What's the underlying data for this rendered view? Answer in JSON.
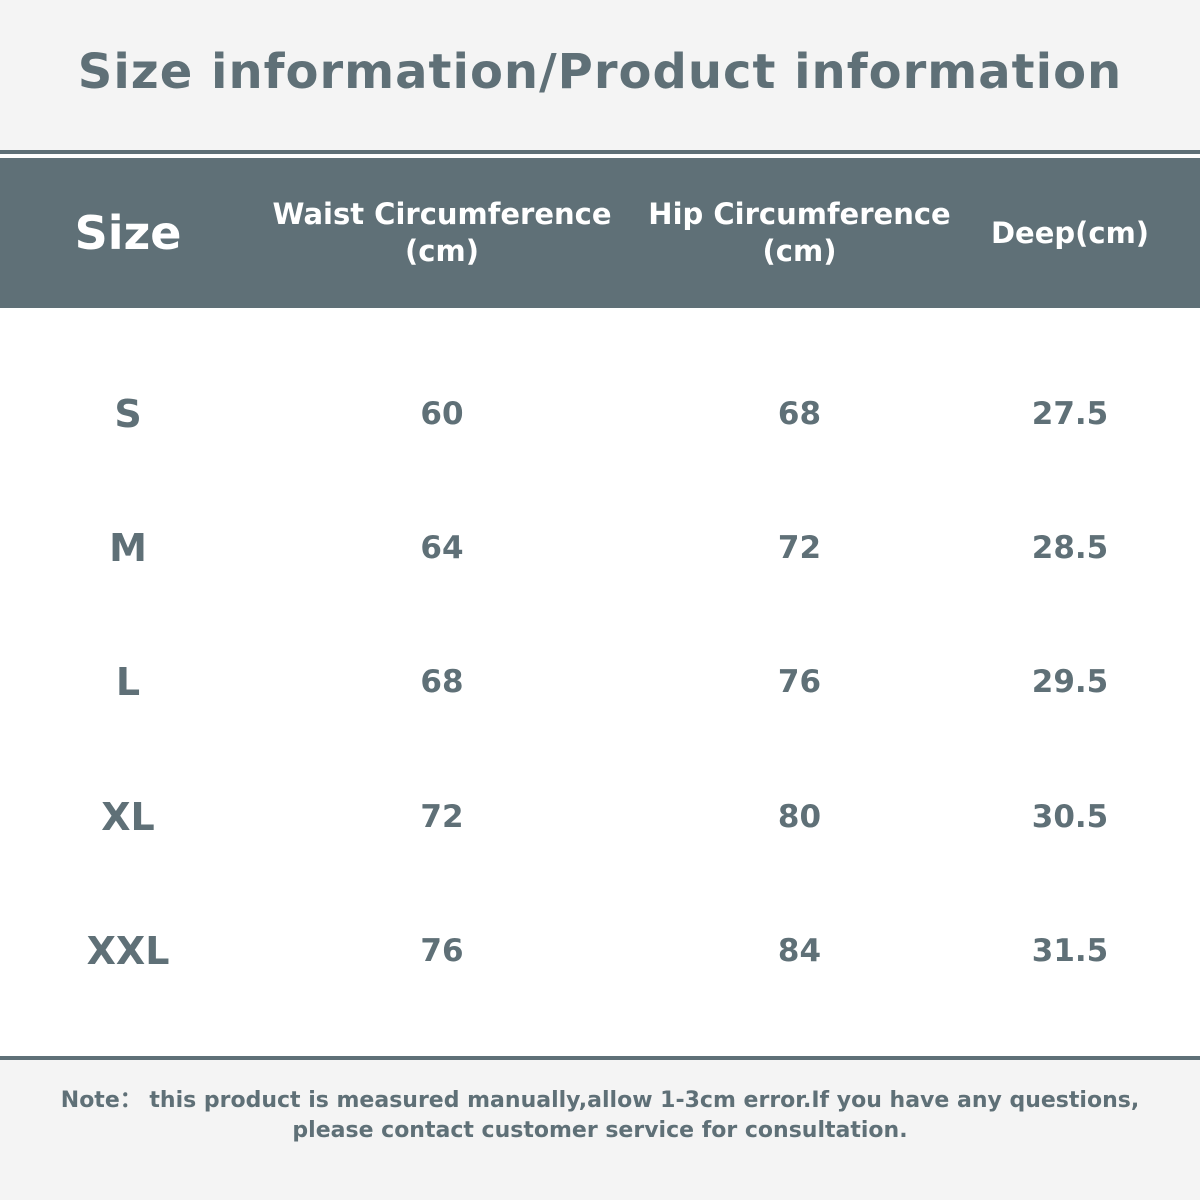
{
  "title": "Size information/Product information",
  "table": {
    "headers": {
      "size": "Size",
      "waist": "Waist Circumference\n(cm)",
      "hip": "Hip Circumference\n(cm)",
      "deep": "Deep(cm)"
    },
    "rows": [
      {
        "size": "S",
        "waist": "60",
        "hip": "68",
        "deep": "27.5"
      },
      {
        "size": "M",
        "waist": "64",
        "hip": "72",
        "deep": "28.5"
      },
      {
        "size": "L",
        "waist": "68",
        "hip": "76",
        "deep": "29.5"
      },
      {
        "size": "XL",
        "waist": "72",
        "hip": "80",
        "deep": "30.5"
      },
      {
        "size": "XXL",
        "waist": "76",
        "hip": "84",
        "deep": "31.5"
      }
    ]
  },
  "note": {
    "line1": "Note： this product is measured manually,allow 1-3cm error.If you have any questions,",
    "line2": "please contact customer service for consultation."
  },
  "colors": {
    "accent": "#5f7077",
    "band": "#f4f4f4",
    "background": "#ffffff"
  }
}
